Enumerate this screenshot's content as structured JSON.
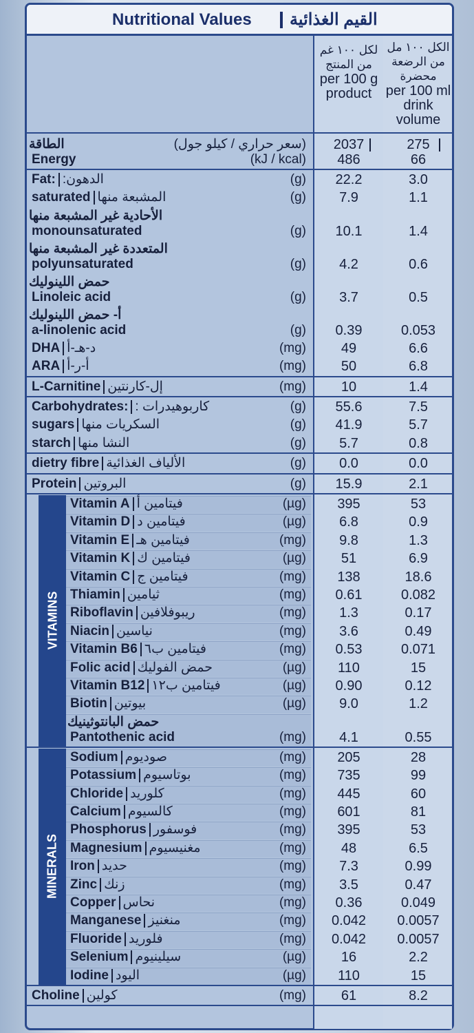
{
  "header": {
    "title_en": "Nutritional Values",
    "title_ar": "القيم الغذائية",
    "col1": [
      "لكل ١٠٠ غم",
      "من المنتج",
      "per 100 g",
      "product"
    ],
    "col2": [
      "الكل ١٠٠ مل",
      "من الرضعة",
      "محضرة",
      "per 100 ml",
      "drink",
      "volume"
    ]
  },
  "sections": [
    {
      "rows": [
        {
          "en": "Energy",
          "ar_above": "الطاقة",
          "unit": [
            "(سعر حراري / كيلو جول)",
            "(kJ / kcal)"
          ],
          "per100g": [
            "2037",
            "486"
          ],
          "per100ml": [
            "275",
            "66"
          ]
        }
      ]
    },
    {
      "rows": [
        {
          "en": "Fat:",
          "ar": "الدهون:",
          "unit": "(g)",
          "per100g": "22.2",
          "per100ml": "3.0"
        },
        {
          "en": "saturated",
          "ar": "المشبعة منها",
          "unit": "(g)",
          "per100g": "7.9",
          "per100ml": "1.1"
        },
        {
          "en": "monounsaturated",
          "ar_above": "الأحادية غير المشبعة منها",
          "unit": "(g)",
          "per100g": "10.1",
          "per100ml": "1.4"
        },
        {
          "en": "polyunsaturated",
          "ar_above": "المتعددة غير المشبعة منها",
          "unit": "(g)",
          "per100g": "4.2",
          "per100ml": "0.6"
        },
        {
          "en": "Linoleic acid",
          "ar_above": "حمض اللينوليك",
          "unit": "(g)",
          "per100g": "3.7",
          "per100ml": "0.5"
        },
        {
          "en": "a-linolenic acid",
          "ar_above": "أ- حمض اللينوليك",
          "unit": "(g)",
          "per100g": "0.39",
          "per100ml": "0.053"
        },
        {
          "en": "DHA",
          "ar": "د-هـ-أ",
          "unit": "(mg)",
          "per100g": "49",
          "per100ml": "6.6"
        },
        {
          "en": "ARA",
          "ar": "أ-ر-أ",
          "unit": "(mg)",
          "per100g": "50",
          "per100ml": "6.8"
        }
      ]
    },
    {
      "rows": [
        {
          "en": "L-Carnitine",
          "ar": "إل-كارنتين",
          "unit": "(mg)",
          "per100g": "10",
          "per100ml": "1.4"
        }
      ]
    },
    {
      "rows": [
        {
          "en": "Carbohydrates:",
          "ar": "كاربوهيدرات :",
          "unit": "(g)",
          "per100g": "55.6",
          "per100ml": "7.5"
        },
        {
          "en": "sugars",
          "ar": "السكريات منها",
          "unit": "(g)",
          "per100g": "41.9",
          "per100ml": "5.7"
        },
        {
          "en": "starch",
          "ar": "النشا منها",
          "unit": "(g)",
          "per100g": "5.7",
          "per100ml": "0.8"
        }
      ]
    },
    {
      "rows": [
        {
          "en": "dietry fibre",
          "ar": "الألياف الغذائية",
          "unit": "(g)",
          "per100g": "0.0",
          "per100ml": "0.0"
        }
      ]
    },
    {
      "rows": [
        {
          "en": "Protein",
          "ar": "البروتين",
          "unit": "(g)",
          "per100g": "15.9",
          "per100ml": "2.1"
        }
      ]
    },
    {
      "label": "VITAMINS",
      "rows": [
        {
          "en": "Vitamin A",
          "ar": "فيتامين أ",
          "unit": "(µg)",
          "per100g": "395",
          "per100ml": "53"
        },
        {
          "en": "Vitamin D",
          "ar": "فيتامين د",
          "unit": "(µg)",
          "per100g": "6.8",
          "per100ml": "0.9"
        },
        {
          "en": "Vitamin E",
          "ar": "فيتامين هـ",
          "unit": "(mg)",
          "per100g": "9.8",
          "per100ml": "1.3"
        },
        {
          "en": "Vitamin K",
          "ar": "فيتامين ك",
          "unit": "(µg)",
          "per100g": "51",
          "per100ml": "6.9"
        },
        {
          "en": "Vitamin C",
          "ar": "فيتامين ج",
          "unit": "(mg)",
          "per100g": "138",
          "per100ml": "18.6"
        },
        {
          "en": "Thiamin",
          "ar": "ثيامين",
          "unit": "(mg)",
          "per100g": "0.61",
          "per100ml": "0.082"
        },
        {
          "en": "Riboflavin",
          "ar": "ريبوفلافين",
          "unit": "(mg)",
          "per100g": "1.3",
          "per100ml": "0.17"
        },
        {
          "en": "Niacin",
          "ar": "نياسين",
          "unit": "(mg)",
          "per100g": "3.6",
          "per100ml": "0.49"
        },
        {
          "en": "Vitamin B6",
          "ar": "فيتامين ب٦",
          "unit": "(mg)",
          "per100g": "0.53",
          "per100ml": "0.071"
        },
        {
          "en": "Folic acid",
          "ar": "حمض الفوليك",
          "unit": "(µg)",
          "per100g": "110",
          "per100ml": "15"
        },
        {
          "en": "Vitamin B12",
          "ar": "فيتامين ب١٢",
          "unit": "(µg)",
          "per100g": "0.90",
          "per100ml": "0.12"
        },
        {
          "en": "Biotin",
          "ar": "بيوتين",
          "unit": "(µg)",
          "per100g": "9.0",
          "per100ml": "1.2"
        },
        {
          "en": "Pantothenic acid",
          "ar_above": "حمض البانتوثينيك",
          "unit": "(mg)",
          "per100g": "4.1",
          "per100ml": "0.55"
        }
      ]
    },
    {
      "label": "MINERALS",
      "rows": [
        {
          "en": "Sodium",
          "ar": "صوديوم",
          "unit": "(mg)",
          "per100g": "205",
          "per100ml": "28"
        },
        {
          "en": "Potassium",
          "ar": "بوتاسيوم",
          "unit": "(mg)",
          "per100g": "735",
          "per100ml": "99"
        },
        {
          "en": "Chloride",
          "ar": "كلوريد",
          "unit": "(mg)",
          "per100g": "445",
          "per100ml": "60"
        },
        {
          "en": "Calcium",
          "ar": "كالسيوم",
          "unit": "(mg)",
          "per100g": "601",
          "per100ml": "81"
        },
        {
          "en": "Phosphorus",
          "ar": "فوسفور",
          "unit": "(mg)",
          "per100g": "395",
          "per100ml": "53"
        },
        {
          "en": "Magnesium",
          "ar": "مغنيسيوم",
          "unit": "(mg)",
          "per100g": "48",
          "per100ml": "6.5"
        },
        {
          "en": "Iron",
          "ar": "حديد",
          "unit": "(mg)",
          "per100g": "7.3",
          "per100ml": "0.99"
        },
        {
          "en": "Zinc",
          "ar": "زنك",
          "unit": "(mg)",
          "per100g": "3.5",
          "per100ml": "0.47"
        },
        {
          "en": "Copper",
          "ar": "نحاس",
          "unit": "(mg)",
          "per100g": "0.36",
          "per100ml": "0.049"
        },
        {
          "en": "Manganese",
          "ar": "منغنيز",
          "unit": "(mg)",
          "per100g": "0.042",
          "per100ml": "0.0057"
        },
        {
          "en": "Fluoride",
          "ar": "فلوريد",
          "unit": "(mg)",
          "per100g": "0.042",
          "per100ml": "0.0057"
        },
        {
          "en": "Selenium",
          "ar": "سيلينيوم",
          "unit": "(µg)",
          "per100g": "16",
          "per100ml": "2.2"
        },
        {
          "en": "Iodine",
          "ar": "اليود",
          "unit": "(µg)",
          "per100g": "110",
          "per100ml": "15"
        }
      ]
    },
    {
      "rows": [
        {
          "en": "Choline",
          "ar": "كولين",
          "unit": "(mg)",
          "per100g": "61",
          "per100ml": "8.2"
        }
      ]
    }
  ]
}
